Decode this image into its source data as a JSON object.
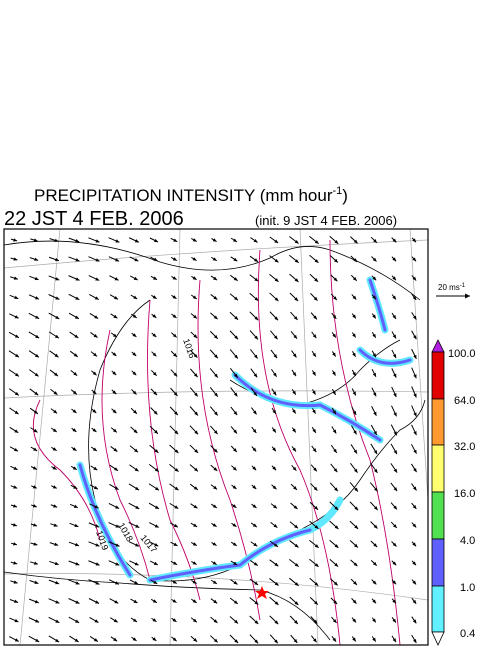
{
  "header": {
    "title": "PRECIPITATION INTENSITY (mm hour",
    "title_exponent": "-1",
    "title_end": ")",
    "valid_time": "22 JST 4 FEB. 2006",
    "init_time": "(init. 9 JST 4 FEB. 2006)"
  },
  "wind_scale": {
    "label": "20 ms",
    "exponent": "-1"
  },
  "colorbar": {
    "labels": [
      "100.0",
      "64.0",
      "32.0",
      "16.0",
      "4.0",
      "1.0",
      "0.4"
    ]
  },
  "contour_labels": [
    "1019",
    "1018",
    "1017",
    "1016"
  ]
}
